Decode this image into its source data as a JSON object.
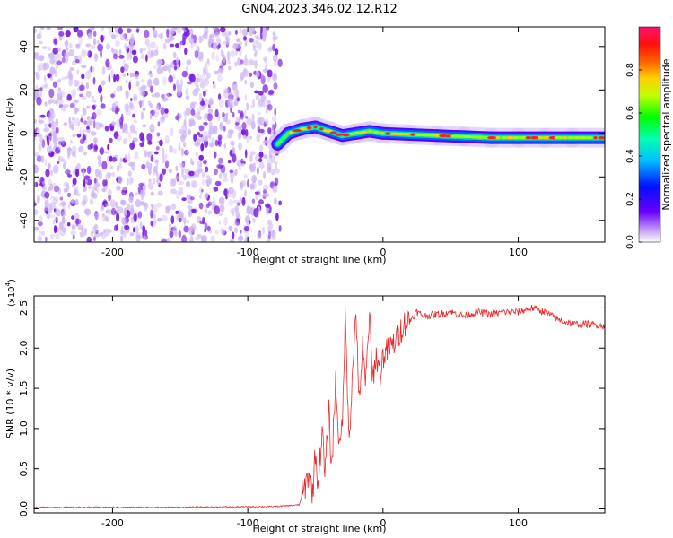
{
  "figure_title": "GN04.2023.346.02.12.R12",
  "colors": {
    "snr_line": "#e8282a",
    "scatter_dense": "#7a1fe0",
    "scatter_light": "#cdb3f2"
  },
  "chart_data": [
    {
      "type": "heatmap",
      "title": "GN04.2023.346.02.12.R12",
      "xlabel": "Height of straight line (km)",
      "ylabel": "Frequency (Hz)",
      "xlim": [
        -258,
        164
      ],
      "ylim": [
        -50,
        49
      ],
      "x_ticks": [
        -200,
        -100,
        0,
        100
      ],
      "x_tick_labels": [
        "-200",
        "-100",
        "0",
        "100"
      ],
      "y_ticks": [
        -40,
        -20,
        0,
        20,
        40
      ],
      "y_tick_labels": [
        "-40",
        "-20",
        "0",
        "20",
        "40"
      ],
      "noise_region_x": [
        -258,
        -76
      ],
      "ridge": {
        "x": [
          -78,
          -70,
          -60,
          -50,
          -40,
          -30,
          -20,
          -10,
          0,
          20,
          40,
          60,
          80,
          100,
          120,
          140,
          164
        ],
        "frequency": [
          -5,
          0,
          2,
          3,
          1,
          -1,
          0,
          1,
          0,
          -0.5,
          -1,
          -1.5,
          -2,
          -2,
          -2,
          -2,
          -2
        ]
      },
      "colorbar": {
        "label": "Normalized spectral amplitude",
        "range": [
          0,
          1
        ],
        "ticks": [
          0.0,
          0.2,
          0.4,
          0.6,
          0.8
        ],
        "tick_labels": [
          "0.0",
          "0.2",
          "0.4",
          "0.6",
          "0.8"
        ]
      },
      "grid": false
    },
    {
      "type": "line",
      "xlabel": "Height of straight line (km)",
      "ylabel": "SNR (10 * v/v)",
      "y_multiplier": "(x10",
      "y_multiplier_exp": "4",
      "y_multiplier_close": ")",
      "xlim": [
        -258,
        164
      ],
      "ylim": [
        -0.05,
        2.65
      ],
      "x_ticks": [
        -200,
        -100,
        0,
        100
      ],
      "x_tick_labels": [
        "-200",
        "-100",
        "0",
        "100"
      ],
      "y_ticks": [
        0.0,
        0.5,
        1.0,
        1.5,
        2.0,
        2.5
      ],
      "y_tick_labels": [
        "0.0",
        "0.5",
        "1.0",
        "1.5",
        "2.0",
        "2.5"
      ],
      "series": [
        {
          "x": [
            -258,
            -150,
            -80,
            -62,
            -57,
            -55,
            -52,
            -50,
            -48,
            -45,
            -43,
            -40,
            -38,
            -35,
            -32,
            -30,
            -28,
            -25,
            -22,
            -20,
            -18,
            -15,
            -13,
            -10,
            -8,
            -5,
            -2,
            0,
            5,
            10,
            15,
            20,
            25,
            30,
            40,
            50,
            60,
            70,
            80,
            90,
            100,
            110,
            120,
            130,
            140,
            150,
            164
          ],
          "y": [
            0.02,
            0.02,
            0.03,
            0.05,
            0.3,
            0.45,
            0.2,
            0.7,
            0.3,
            1.0,
            0.4,
            1.2,
            0.5,
            1.6,
            0.7,
            1.1,
            2.4,
            0.9,
            1.8,
            2.55,
            1.3,
            2.0,
            1.5,
            2.45,
            1.6,
            1.9,
            1.7,
            1.9,
            2.0,
            2.1,
            2.3,
            2.35,
            2.45,
            2.4,
            2.42,
            2.45,
            2.4,
            2.45,
            2.42,
            2.45,
            2.45,
            2.5,
            2.45,
            2.35,
            2.3,
            2.3,
            2.28
          ]
        }
      ],
      "grid": false
    }
  ]
}
